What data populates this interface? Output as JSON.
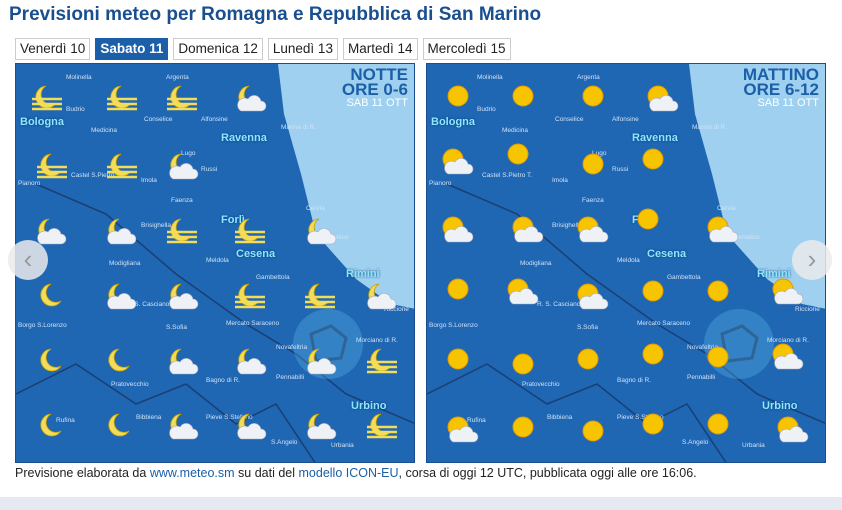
{
  "title": "Previsioni meteo per Romagna e Repubblica di San Marino",
  "tabs": [
    {
      "label": "Venerdì 10"
    },
    {
      "label": "Sabato 11",
      "active": true
    },
    {
      "label": "Domenica 12"
    },
    {
      "label": "Lunedì 13"
    },
    {
      "label": "Martedì 14"
    },
    {
      "label": "Mercoledì 15"
    }
  ],
  "maps": [
    {
      "period": "NOTTE",
      "hours": "ORE 0-6",
      "date": "SAB 11 OTT",
      "icons": [
        "fog-moon",
        "fog-moon",
        "fog-moon",
        "moon-cloud",
        "fog-moon",
        "fog-moon",
        "moon-cloud",
        "moon-cloud",
        "moon-cloud",
        "fog-moon",
        "fog-moon",
        "moon-cloud",
        "moon",
        "moon-cloud",
        "moon-cloud",
        "fog-moon",
        "fog-moon",
        "moon-cloud",
        "moon",
        "moon",
        "moon-cloud",
        "moon-cloud",
        "moon-cloud",
        "fog-moon",
        "moon",
        "moon",
        "moon-cloud",
        "moon-cloud",
        "moon-cloud",
        "fog-moon"
      ]
    },
    {
      "period": "MATTINO",
      "hours": "ORE 6-12",
      "date": "SAB 11 OTT",
      "icons": [
        "sun",
        "sun",
        "sun",
        "sun-cloud",
        "sun-cloud",
        "sun",
        "sun",
        "sun",
        "sun-cloud",
        "sun-cloud",
        "sun-cloud",
        "sun",
        "sun-cloud",
        "sun",
        "sun-cloud",
        "sun-cloud",
        "sun",
        "sun",
        "sun-cloud",
        "sun",
        "sun",
        "sun",
        "sun",
        "sun",
        "sun-cloud",
        "sun-cloud",
        "sun",
        "sun",
        "sun",
        "sun",
        "sun-cloud",
        "sun"
      ]
    }
  ],
  "cities": [
    "Bologna",
    "Ravenna",
    "Forlì",
    "Cesena",
    "Rimini",
    "Urbino"
  ],
  "towns": [
    "Molinella",
    "Argenta",
    "Budrio",
    "Medicina",
    "Conselice",
    "Alfonsine",
    "Lugo",
    "Russi",
    "Castel S.Pietro T.",
    "Imola",
    "Pianoro",
    "Faenza",
    "Brisighella",
    "Modigliana",
    "Meldola",
    "Gambettola",
    "Cervia",
    "Cesenatico",
    "R. S. Casciano",
    "Mercato Saraceno",
    "S.Sofia",
    "Borgo S.Lorenzo",
    "Novafeltria",
    "Bagno di R.",
    "Pennabilli",
    "Morciano di R.",
    "Riccione",
    "Pratovecchio",
    "Rufina",
    "Bibbiena",
    "Pieve S.Stefano",
    "S.Angelo",
    "Urbania",
    "Marina di R."
  ],
  "footer": {
    "t1": "Previsione elaborata da ",
    "link1": "www.meteo.sm",
    "t2": " su dati del ",
    "link2": "modello ICON-EU",
    "t3": ", corsa di oggi 12 UTC, pubblicata oggi alle ore 16:06."
  },
  "nav": {
    "prev": "‹",
    "next": "›"
  },
  "colors": {
    "title": "#1a4f8f",
    "tab_active": "#1b5fa8",
    "land": "#1f66b3",
    "sea": "#9fd0ef",
    "city": "#8de8ff"
  }
}
